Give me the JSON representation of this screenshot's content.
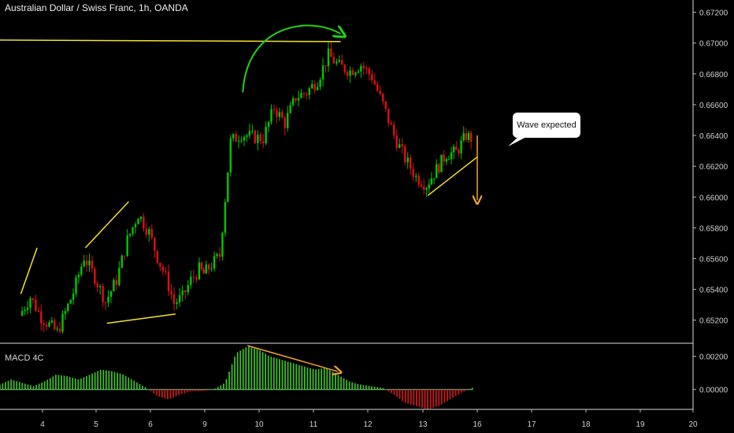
{
  "header": {
    "title": "Australian Dollar / Swiss Franc, 1h, OANDA"
  },
  "macd": {
    "label": "MACD 4C"
  },
  "annotation": {
    "text": "Wave expected"
  },
  "colors": {
    "bull": "#00c800",
    "bear": "#e01010",
    "trend": "#f5e32a",
    "arc": "#22d314",
    "forecast": "#f2a42c",
    "macd_pos": "#3dbb2a",
    "macd_neg": "#c81a1a"
  },
  "chart_data": [
    {
      "type": "candlestick",
      "title": "Australian Dollar / Swiss Franc, 1h, OANDA",
      "xlabel": "",
      "ylabel": "",
      "x_ticks": [
        "4",
        "5",
        "6",
        "9",
        "10",
        "11",
        "12",
        "13",
        "16",
        "17",
        "18",
        "19",
        "20"
      ],
      "y_ticks": [
        "0.67200",
        "0.67000",
        "0.66800",
        "0.66600",
        "0.66400",
        "0.66200",
        "0.66000",
        "0.65800",
        "0.65600",
        "0.65400",
        "0.65200"
      ],
      "ylim": [
        0.6505,
        0.6728
      ],
      "price_path": [
        [
          "3.6",
          0.6523
        ],
        [
          "3.8",
          0.6535
        ],
        [
          "4.0",
          0.6522
        ],
        [
          "4.3",
          0.6512
        ],
        [
          "4.6",
          0.6538
        ],
        [
          "4.8",
          0.6561
        ],
        [
          "5.0",
          0.6548
        ],
        [
          "5.2",
          0.6532
        ],
        [
          "5.4",
          0.6546
        ],
        [
          "5.6",
          0.6572
        ],
        [
          "5.8",
          0.6589
        ],
        [
          "6.0",
          0.6577
        ],
        [
          "6.2",
          0.6561
        ],
        [
          "6.4",
          0.6548
        ],
        [
          "6.6",
          0.6531
        ],
        [
          "6.8",
          0.6535
        ],
        [
          "7.0",
          0.6546
        ],
        [
          "7.2",
          0.6553
        ],
        [
          "9.0",
          0.655
        ],
        [
          "9.3",
          0.6562
        ],
        [
          "9.5",
          0.6636
        ],
        [
          "9.7",
          0.6641
        ],
        [
          "9.9",
          0.6639
        ],
        [
          "10.1",
          0.6638
        ],
        [
          "10.3",
          0.6658
        ],
        [
          "10.5",
          0.6648
        ],
        [
          "10.7",
          0.6665
        ],
        [
          "10.9",
          0.6668
        ],
        [
          "11.1",
          0.6676
        ],
        [
          "11.3",
          0.6692
        ],
        [
          "11.5",
          0.6685
        ],
        [
          "11.7",
          0.6682
        ],
        [
          "11.9",
          0.6686
        ],
        [
          "12.1",
          0.6678
        ],
        [
          "12.3",
          0.666
        ],
        [
          "12.5",
          0.664
        ],
        [
          "12.7",
          0.6625
        ],
        [
          "12.9",
          0.6613
        ],
        [
          "13.1",
          0.6608
        ],
        [
          "13.3",
          0.6618
        ],
        [
          "13.5",
          0.6628
        ],
        [
          "13.7",
          0.6629
        ],
        [
          "13.9",
          0.664
        ],
        [
          "14.0",
          0.6638
        ]
      ],
      "trend_lines": [
        {
          "from": [
            "3.6",
            0.6537
          ],
          "to": [
            "3.9",
            0.6567
          ],
          "color": "yellow"
        },
        {
          "from": [
            "4.8",
            0.6567
          ],
          "to": [
            "5.6",
            0.6597
          ],
          "color": "yellow"
        },
        {
          "from": [
            "5.2",
            0.6518
          ],
          "to": [
            "6.6",
            0.6524
          ],
          "color": "yellow"
        },
        {
          "from": [
            "3.0",
            0.6702
          ],
          "to": [
            "11.5",
            0.6701
          ],
          "color": "yellow"
        },
        {
          "from": [
            "13.1",
            0.6601
          ],
          "to": [
            "14.2",
            0.6626
          ],
          "color": "yellow"
        }
      ],
      "forecast_arrow": {
        "from": [
          "14.1",
          0.664
        ],
        "to": [
          "14.7",
          0.6598
        ]
      },
      "annotation": "Wave expected"
    },
    {
      "type": "bar",
      "title": "MACD 4C",
      "y_ticks": [
        "0.00200",
        "0.00000"
      ],
      "ylim": [
        -0.0012,
        0.0026
      ],
      "series": [
        {
          "name": "MACD 4C",
          "values": [
            0.0003,
            0.0006,
            0.0004,
            0.0002,
            0.0005,
            0.0009,
            0.0008,
            0.0006,
            0.0009,
            0.0012,
            0.0011,
            0.0009,
            0.0005,
            0.0001,
            -0.0004,
            -0.0006,
            -0.0003,
            -0.0001,
            -0.0001,
            0.0,
            0.0004,
            0.0022,
            0.0026,
            0.0024,
            0.002,
            0.0018,
            0.0016,
            0.0014,
            0.0012,
            0.0013,
            0.0009,
            0.0005,
            0.0003,
            0.0002,
            0.0001,
            -0.0003,
            -0.0008,
            -0.001,
            -0.0012,
            -0.001,
            -0.0006,
            -0.0002,
            0.0001
          ]
        }
      ],
      "divergence_line": {
        "from_index": 22,
        "to_index": 30
      }
    }
  ]
}
